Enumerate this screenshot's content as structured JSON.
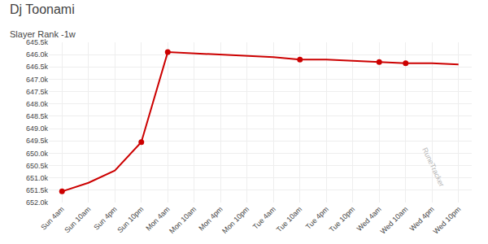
{
  "chart_data": {
    "type": "line",
    "title": "Dj Toonami",
    "subtitle": "Slayer Rank -1w",
    "categories": [
      "Sun 4am",
      "Sun 10am",
      "Sun 4pm",
      "Sun 10pm",
      "Mon 4am",
      "Mon 10am",
      "Mon 4pm",
      "Mon 10pm",
      "Tue 4am",
      "Tue 10am",
      "Tue 4pm",
      "Tue 10pm",
      "Wed 4am",
      "Wed 10am",
      "Wed 4pm",
      "Wed 10pm"
    ],
    "series": [
      {
        "color": "#cc0000",
        "line_style": "solid",
        "marker": "none",
        "values": [
          651550,
          651200,
          650700,
          649550,
          645900,
          645950,
          646000,
          646050,
          646100,
          646200,
          646200,
          646250,
          646300,
          646350,
          646350,
          646400
        ]
      },
      {
        "color": "#cc0000",
        "line_style": "none",
        "marker": "circle",
        "values": [
          651550,
          null,
          null,
          649550,
          645900,
          null,
          null,
          null,
          null,
          646200,
          null,
          null,
          646300,
          646350,
          null,
          null
        ]
      }
    ],
    "ylim": [
      652000,
      645500
    ],
    "yticks": [
      {
        "value": 645500,
        "label": "645.5k"
      },
      {
        "value": 646000,
        "label": "646.0k"
      },
      {
        "value": 646500,
        "label": "646.5k"
      },
      {
        "value": 647000,
        "label": "647.0k"
      },
      {
        "value": 647500,
        "label": "647.5k"
      },
      {
        "value": 648000,
        "label": "648.0k"
      },
      {
        "value": 648500,
        "label": "648.5k"
      },
      {
        "value": 649000,
        "label": "649.0k"
      },
      {
        "value": 649500,
        "label": "649.5k"
      },
      {
        "value": 650000,
        "label": "650.0k"
      },
      {
        "value": 650500,
        "label": "650.5k"
      },
      {
        "value": 651000,
        "label": "651.0k"
      },
      {
        "value": 651500,
        "label": "651.5k"
      },
      {
        "value": 652000,
        "label": "652.0k"
      }
    ],
    "grid": true,
    "annotations": [
      "RuneTracker"
    ]
  }
}
